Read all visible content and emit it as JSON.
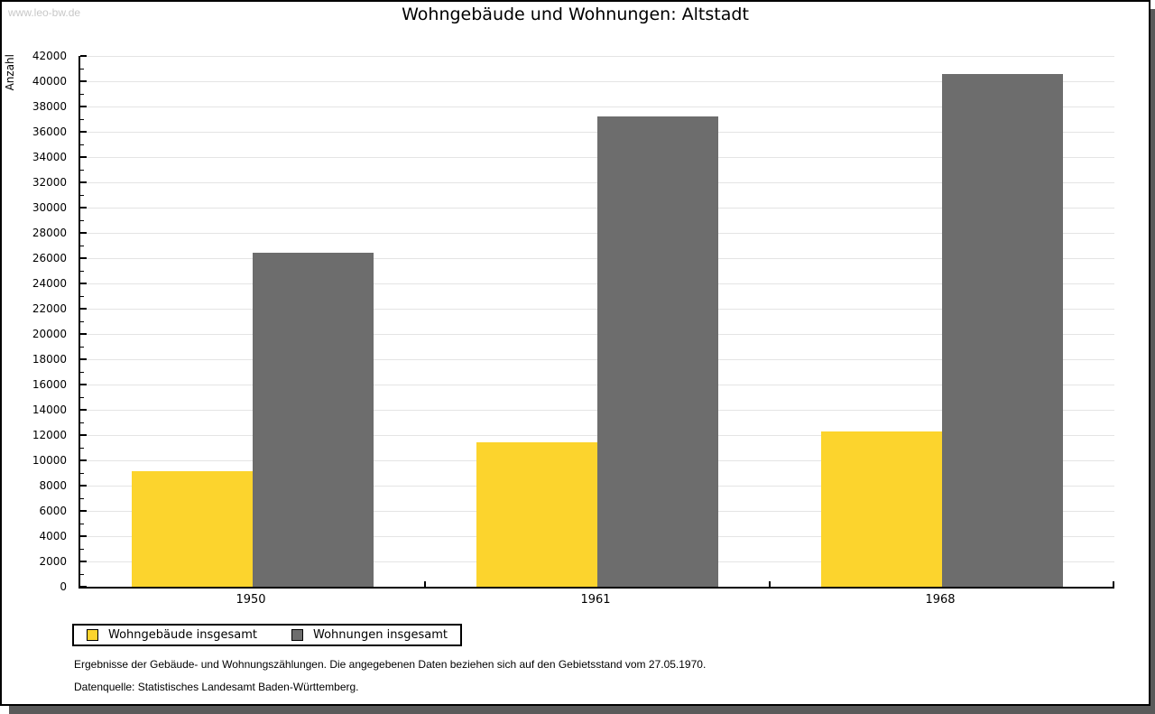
{
  "watermark": "www.leo-bw.de",
  "chart_data": {
    "type": "bar",
    "title": "Wohngebäude und Wohnungen: Altstadt",
    "categories": [
      "1950",
      "1961",
      "1968"
    ],
    "series": [
      {
        "name": "Wohngebäude insgesamt",
        "color": "#FCD42D",
        "values": [
          9150,
          11400,
          12250
        ]
      },
      {
        "name": "Wohnungen insgesamt",
        "color": "#6D6D6D",
        "values": [
          26400,
          37200,
          40600
        ]
      }
    ],
    "xlabel": "",
    "ylabel": "Anzahl",
    "ylim": [
      0,
      42000
    ],
    "ytick_step": 2000,
    "yminor_step": 1000,
    "grid": "horizontal-major",
    "legend_position": "bottom-left",
    "colors": {
      "axis": "#000000",
      "gridline": "#E4E4E4",
      "background": "#FFFFFF",
      "watermark_text": "#C8C8C8",
      "window_shadow": "#5A5A5A"
    }
  },
  "footnotes": [
    "Ergebnisse der Gebäude- und Wohnungszählungen. Die angegebenen Daten beziehen sich auf den Gebietsstand vom 27.05.1970.",
    "Datenquelle: Statistisches Landesamt Baden-Württemberg."
  ]
}
